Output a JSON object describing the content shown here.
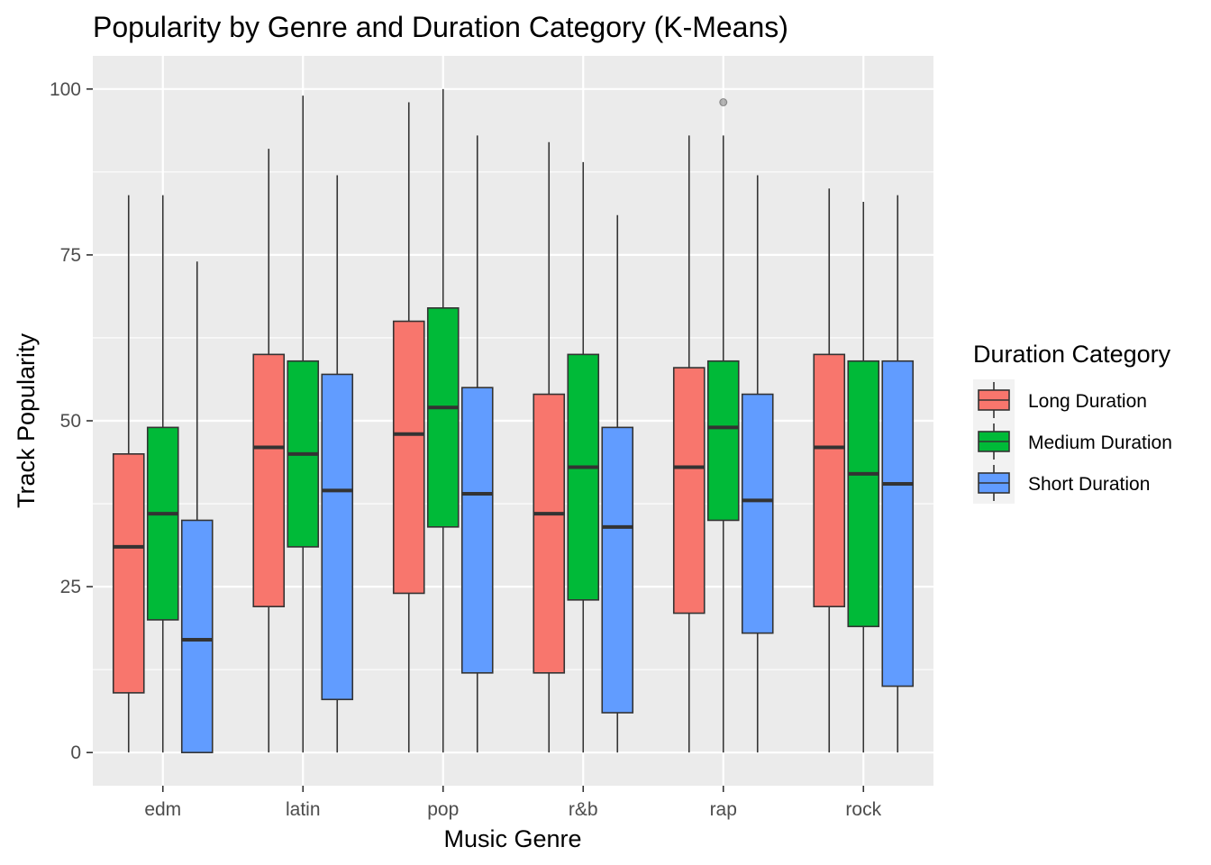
{
  "chart_data": {
    "type": "boxplot",
    "title": "Popularity by Genre and Duration Category (K-Means)",
    "xlabel": "Music Genre",
    "ylabel": "Track Popularity",
    "ylim": [
      -5,
      105
    ],
    "yticks": [
      0,
      25,
      50,
      75,
      100
    ],
    "grid": true,
    "legend_position": "right",
    "legend_title": "Duration Category",
    "categories": [
      "edm",
      "latin",
      "pop",
      "r&b",
      "rap",
      "rock"
    ],
    "series": [
      {
        "name": "Long Duration",
        "color": "#F8766D",
        "boxes": [
          {
            "min": 0,
            "q1": 9,
            "median": 31,
            "q3": 45,
            "max": 84,
            "outliers": []
          },
          {
            "min": 0,
            "q1": 22,
            "median": 46,
            "q3": 60,
            "max": 91,
            "outliers": []
          },
          {
            "min": 0,
            "q1": 24,
            "median": 48,
            "q3": 65,
            "max": 98,
            "outliers": []
          },
          {
            "min": 0,
            "q1": 12,
            "median": 36,
            "q3": 54,
            "max": 92,
            "outliers": []
          },
          {
            "min": 0,
            "q1": 21,
            "median": 43,
            "q3": 58,
            "max": 93,
            "outliers": []
          },
          {
            "min": 0,
            "q1": 22,
            "median": 46,
            "q3": 60,
            "max": 85,
            "outliers": []
          }
        ]
      },
      {
        "name": "Medium Duration",
        "color": "#00BA38",
        "boxes": [
          {
            "min": 0,
            "q1": 20,
            "median": 36,
            "q3": 49,
            "max": 84,
            "outliers": []
          },
          {
            "min": 0,
            "q1": 31,
            "median": 45,
            "q3": 59,
            "max": 99,
            "outliers": []
          },
          {
            "min": 0,
            "q1": 34,
            "median": 52,
            "q3": 67,
            "max": 100,
            "outliers": []
          },
          {
            "min": 0,
            "q1": 23,
            "median": 43,
            "q3": 60,
            "max": 89,
            "outliers": []
          },
          {
            "min": 0,
            "q1": 35,
            "median": 49,
            "q3": 59,
            "max": 93,
            "outliers": [
              98
            ]
          },
          {
            "min": 0,
            "q1": 19,
            "median": 42,
            "q3": 59,
            "max": 83,
            "outliers": []
          }
        ]
      },
      {
        "name": "Short Duration",
        "color": "#619CFF",
        "boxes": [
          {
            "min": 0,
            "q1": 0,
            "median": 17,
            "q3": 35,
            "max": 74,
            "outliers": []
          },
          {
            "min": 0,
            "q1": 8,
            "median": 39.5,
            "q3": 57,
            "max": 87,
            "outliers": []
          },
          {
            "min": 0,
            "q1": 12,
            "median": 39,
            "q3": 55,
            "max": 93,
            "outliers": []
          },
          {
            "min": 0,
            "q1": 6,
            "median": 34,
            "q3": 49,
            "max": 81,
            "outliers": []
          },
          {
            "min": 0,
            "q1": 18,
            "median": 38,
            "q3": 54,
            "max": 87,
            "outliers": []
          },
          {
            "min": 0,
            "q1": 10,
            "median": 40.5,
            "q3": 59,
            "max": 84,
            "outliers": []
          }
        ]
      }
    ]
  }
}
